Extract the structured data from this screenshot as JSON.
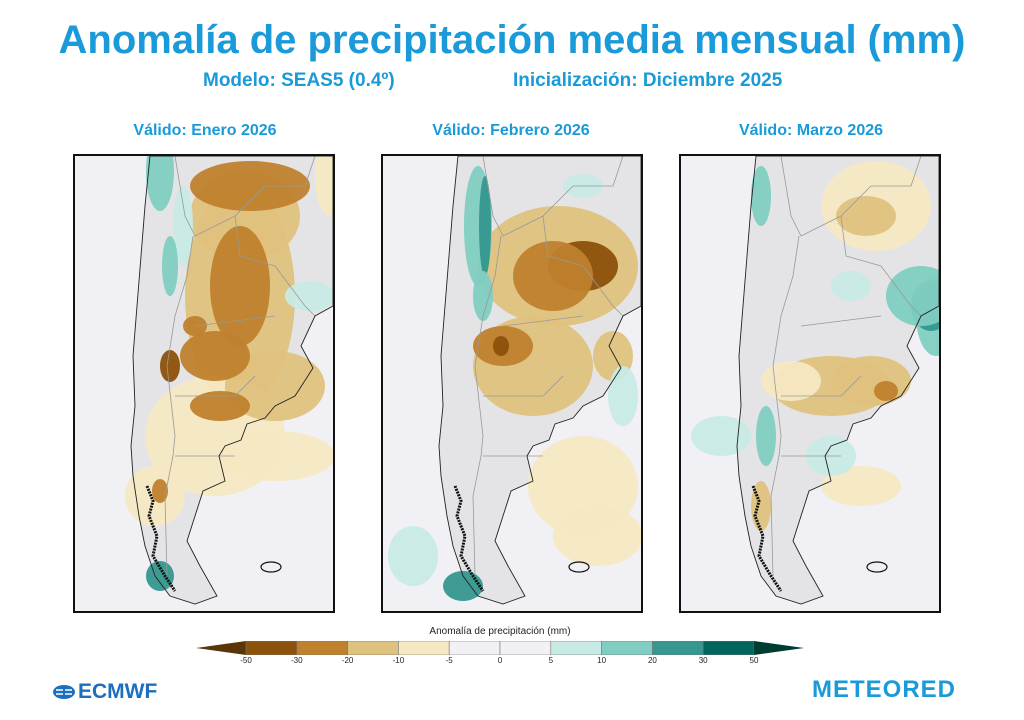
{
  "header": {
    "title": "Anomalía de precipitación media mensual (mm)",
    "model": "Modelo: SEAS5 (0.4º)",
    "init": "Inicialización: Diciembre 2025"
  },
  "panels": [
    {
      "title": "Válido: Enero 2026"
    },
    {
      "title": "Válido: Febrero 2026"
    },
    {
      "title": "Válido: Marzo 2026"
    }
  ],
  "colorbar": {
    "title": "Anomalía de precipitación (mm)",
    "ticks": [
      "-50",
      "-30",
      "-20",
      "-10",
      "-5",
      "0",
      "5",
      "10",
      "20",
      "30",
      "50"
    ],
    "colors": [
      "#5a3508",
      "#8c510a",
      "#bf812d",
      "#dfc27d",
      "#f6e8c3",
      "#f0f0f5",
      "#f0f0f5",
      "#c7eae5",
      "#80cdc1",
      "#35978f",
      "#01665e",
      "#003c30"
    ]
  },
  "logos": {
    "left": "ECMWF",
    "right": "METEORED"
  }
}
